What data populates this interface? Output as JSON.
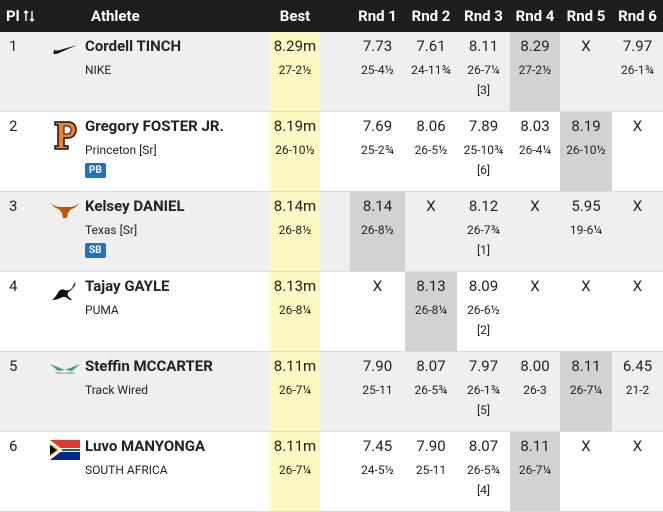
{
  "header": {
    "place": "Pl",
    "athlete": "Athlete",
    "best": "Best",
    "rounds": [
      "Rnd 1",
      "Rnd 2",
      "Rnd 3",
      "Rnd 4",
      "Rnd 5",
      "Rnd 6"
    ]
  },
  "table": {
    "rows": [
      {
        "place": "1",
        "name": "Cordell TINCH",
        "affiliation": "NIKE",
        "best": "8.29m",
        "best_imperial": "27-2½",
        "rounds": [
          {
            "mark": "7.73",
            "imperial": "25-4½"
          },
          {
            "mark": "7.61",
            "imperial": "24-11¾"
          },
          {
            "mark": "8.11",
            "imperial": "26-7¼",
            "order": "[3]"
          },
          {
            "mark": "8.29",
            "imperial": "27-2½"
          },
          {
            "mark": "X"
          },
          {
            "mark": "7.97",
            "imperial": "26-1¾"
          }
        ]
      },
      {
        "place": "2",
        "name": "Gregory FOSTER JR.",
        "affiliation": "Princeton [Sr]",
        "badge": "PB",
        "best": "8.19m",
        "best_imperial": "26-10½",
        "rounds": [
          {
            "mark": "7.69",
            "imperial": "25-2¾"
          },
          {
            "mark": "8.06",
            "imperial": "26-5½"
          },
          {
            "mark": "7.89",
            "imperial": "25-10¾",
            "order": "[6]"
          },
          {
            "mark": "8.03",
            "imperial": "26-4¼"
          },
          {
            "mark": "8.19",
            "imperial": "26-10½"
          },
          {
            "mark": "X"
          }
        ]
      },
      {
        "place": "3",
        "name": "Kelsey DANIEL",
        "affiliation": "Texas [Sr]",
        "badge": "SB",
        "best": "8.14m",
        "best_imperial": "26-8½",
        "rounds": [
          {
            "mark": "8.14",
            "imperial": "26-8½"
          },
          {
            "mark": "X"
          },
          {
            "mark": "8.12",
            "imperial": "26-7¾",
            "order": "[1]"
          },
          {
            "mark": "X"
          },
          {
            "mark": "5.95",
            "imperial": "19-6¼"
          },
          {
            "mark": "X"
          }
        ]
      },
      {
        "place": "4",
        "name": "Tajay GAYLE",
        "affiliation": "PUMA",
        "best": "8.13m",
        "best_imperial": "26-8¼",
        "rounds": [
          {
            "mark": "X"
          },
          {
            "mark": "8.13",
            "imperial": "26-8¼"
          },
          {
            "mark": "8.09",
            "imperial": "26-6½",
            "order": "[2]"
          },
          {
            "mark": "X"
          },
          {
            "mark": "X"
          },
          {
            "mark": "X"
          }
        ]
      },
      {
        "place": "5",
        "name": "Steffin MCCARTER",
        "affiliation": "Track Wired",
        "best": "8.11m",
        "best_imperial": "26-7¼",
        "rounds": [
          {
            "mark": "7.90",
            "imperial": "25-11"
          },
          {
            "mark": "8.07",
            "imperial": "26-5¾"
          },
          {
            "mark": "7.97",
            "imperial": "26-1¾",
            "order": "[5]"
          },
          {
            "mark": "8.00",
            "imperial": "26-3"
          },
          {
            "mark": "8.11",
            "imperial": "26-7¼"
          },
          {
            "mark": "6.45",
            "imperial": "21-2"
          }
        ]
      },
      {
        "place": "6",
        "name": "Luvo MANYONGA",
        "affiliation": "SOUTH AFRICA",
        "best": "8.11m",
        "best_imperial": "26-7¼",
        "rounds": [
          {
            "mark": "7.45",
            "imperial": "24-5½"
          },
          {
            "mark": "7.90",
            "imperial": "25-11"
          },
          {
            "mark": "8.07",
            "imperial": "26-5¾",
            "order": "[4]"
          },
          {
            "mark": "8.11",
            "imperial": "26-7¼"
          },
          {
            "mark": "X"
          },
          {
            "mark": "X"
          }
        ]
      }
    ]
  }
}
